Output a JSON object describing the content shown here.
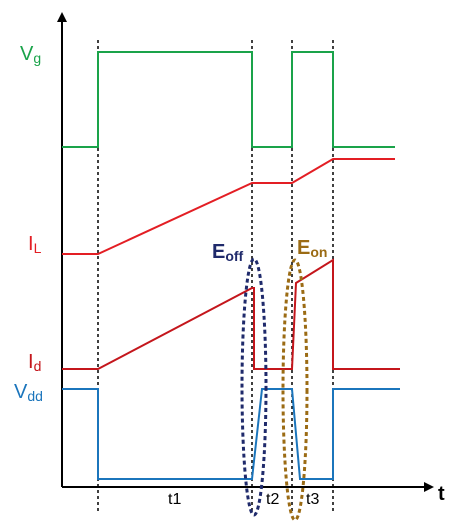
{
  "labels": {
    "vg": {
      "main": "V",
      "sub": "g"
    },
    "il": {
      "main": "I",
      "sub": "L"
    },
    "id": {
      "main": "I",
      "sub": "d"
    },
    "vdd": {
      "main": "V",
      "sub": "dd"
    },
    "eoff": {
      "main": "E",
      "sub": "off"
    },
    "eon": {
      "main": "E",
      "sub": "on"
    }
  },
  "axis": {
    "x_label": "t",
    "intervals": [
      "t1",
      "t2",
      "t3"
    ]
  }
}
